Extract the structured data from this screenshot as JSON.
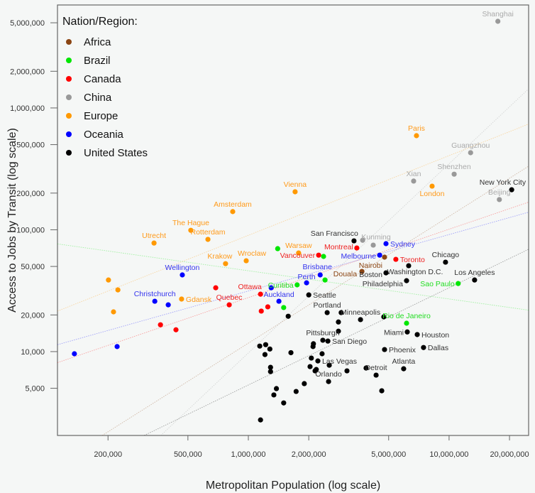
{
  "chart_data": {
    "type": "scatter",
    "xlabel": "Metropolitan Population (log scale)",
    "ylabel": "Access to Jobs by Transit (log scale)",
    "x_scale": "log",
    "y_scale": "log",
    "xlim": [
      112000,
      24900000
    ],
    "ylim": [
      2050,
      7000000
    ],
    "xticks": [
      {
        "value": 200000,
        "label": "200,000"
      },
      {
        "value": 500000,
        "label": "500,000"
      },
      {
        "value": 1000000,
        "label": "1,000,000"
      },
      {
        "value": 2000000,
        "label": "2,000,000"
      },
      {
        "value": 5000000,
        "label": "5,000,000"
      },
      {
        "value": 10000000,
        "label": "10,000,000"
      },
      {
        "value": 20000000,
        "label": "20,000,000"
      }
    ],
    "yticks": [
      {
        "value": 5000000,
        "label": "5,000,000"
      },
      {
        "value": 2000000,
        "label": "2,000,000"
      },
      {
        "value": 1000000,
        "label": "1,000,000"
      },
      {
        "value": 500000,
        "label": "500,000"
      },
      {
        "value": 200000,
        "label": "200,000"
      },
      {
        "value": 100000,
        "label": "100,000"
      },
      {
        "value": 50000,
        "label": "50,000"
      },
      {
        "value": 20000,
        "label": "20,000"
      },
      {
        "value": 10000,
        "label": "10,000"
      },
      {
        "value": 5000,
        "label": "5,000"
      }
    ],
    "grid": false,
    "trend_lines": "per-series log-log fit, dotted",
    "legend": {
      "title": "Nation/Region:",
      "placement": "top-left"
    },
    "series": [
      {
        "name": "Africa",
        "color": "#8b4513",
        "label_color": "#8b4513",
        "points": [
          {
            "x": 3680000,
            "y": 45500,
            "label": "Douala"
          },
          {
            "x": 4770000,
            "y": 59600,
            "label": "Nairobi"
          }
        ]
      },
      {
        "name": "Brazil",
        "color": "#00e600",
        "label_color": "#22dd22",
        "points": [
          {
            "x": 1400000,
            "y": 70000
          },
          {
            "x": 2370000,
            "y": 60400
          },
          {
            "x": 1750000,
            "y": 35300,
            "label": "Curitiba"
          },
          {
            "x": 2410000,
            "y": 38700
          },
          {
            "x": 1500000,
            "y": 23000
          },
          {
            "x": 11100000,
            "y": 36200,
            "label": "Sao Paulo"
          },
          {
            "x": 6140000,
            "y": 17100,
            "label": "Rio de Janeiro"
          }
        ]
      },
      {
        "name": "Canada",
        "color": "#ff0000",
        "label_color": "#ee2222",
        "points": [
          {
            "x": 2240000,
            "y": 61900,
            "label": "Vancouver"
          },
          {
            "x": 3470000,
            "y": 70900,
            "label": "Montreal"
          },
          {
            "x": 5430000,
            "y": 57200,
            "label": "Toronto"
          },
          {
            "x": 688000,
            "y": 33400
          },
          {
            "x": 1150000,
            "y": 29600,
            "label": "Ottawa"
          },
          {
            "x": 803000,
            "y": 24200,
            "label": "Quebec"
          },
          {
            "x": 1250000,
            "y": 23300
          },
          {
            "x": 1160000,
            "y": 21500
          },
          {
            "x": 365000,
            "y": 16600
          },
          {
            "x": 436000,
            "y": 15100
          }
        ]
      },
      {
        "name": "China",
        "color": "#999999",
        "label_color": "#aaaaaa",
        "points": [
          {
            "x": 17500000,
            "y": 5140000,
            "label": "Shanghai"
          },
          {
            "x": 12800000,
            "y": 429000,
            "label": "Guangzhou"
          },
          {
            "x": 10600000,
            "y": 286000,
            "label": "Shenzhen"
          },
          {
            "x": 6660000,
            "y": 251000,
            "label": "Xian"
          },
          {
            "x": 17800000,
            "y": 177000,
            "label": "Beijing"
          },
          {
            "x": 3710000,
            "y": 82000
          },
          {
            "x": 4190000,
            "y": 74800,
            "label": "Kunming"
          }
        ]
      },
      {
        "name": "Europe",
        "color": "#ff9900",
        "label_color": "#ff9a1a",
        "points": [
          {
            "x": 6880000,
            "y": 592000,
            "label": "Paris"
          },
          {
            "x": 8230000,
            "y": 228000,
            "label": "London"
          },
          {
            "x": 1710000,
            "y": 205000,
            "label": "Vienna"
          },
          {
            "x": 836000,
            "y": 141000,
            "label": "Amsterdam"
          },
          {
            "x": 517000,
            "y": 99000,
            "label": "The Hague"
          },
          {
            "x": 629000,
            "y": 83400,
            "label": "Rotterdam"
          },
          {
            "x": 339000,
            "y": 77800,
            "label": "Utrecht"
          },
          {
            "x": 1780000,
            "y": 64500,
            "label": "Warsaw"
          },
          {
            "x": 770000,
            "y": 52700,
            "label": "Krakow"
          },
          {
            "x": 976000,
            "y": 55700,
            "label": "Wroclaw"
          },
          {
            "x": 465000,
            "y": 27000,
            "label": "Gdansk"
          },
          {
            "x": 201000,
            "y": 38700
          },
          {
            "x": 224000,
            "y": 32100
          },
          {
            "x": 213000,
            "y": 21200
          }
        ]
      },
      {
        "name": "Oceania",
        "color": "#0000ff",
        "label_color": "#3333ee",
        "points": [
          {
            "x": 4850000,
            "y": 76900,
            "label": "Sydney"
          },
          {
            "x": 4510000,
            "y": 61900,
            "label": "Melbourne"
          },
          {
            "x": 2280000,
            "y": 42600,
            "label": "Brisbane"
          },
          {
            "x": 1950000,
            "y": 36700,
            "label": "Perth"
          },
          {
            "x": 1420000,
            "y": 25900,
            "label": "Auckland"
          },
          {
            "x": 1300000,
            "y": 33400
          },
          {
            "x": 469000,
            "y": 42600,
            "label": "Wellington"
          },
          {
            "x": 342000,
            "y": 25900,
            "label": "Christchurch"
          },
          {
            "x": 399000,
            "y": 24200
          },
          {
            "x": 222000,
            "y": 11000
          },
          {
            "x": 136000,
            "y": 9600
          }
        ]
      },
      {
        "name": "United States",
        "color": "#000000",
        "label_color": "#333333",
        "points": [
          {
            "x": 20500000,
            "y": 213000,
            "label": "New York City"
          },
          {
            "x": 3360000,
            "y": 81100,
            "label": "San Francisco"
          },
          {
            "x": 9600000,
            "y": 54200,
            "label": "Chicago"
          },
          {
            "x": 6290000,
            "y": 50700,
            "label": "Washington D.C."
          },
          {
            "x": 4850000,
            "y": 44300,
            "label": "Boston"
          },
          {
            "x": 6140000,
            "y": 38200,
            "label": "Philadelphia"
          },
          {
            "x": 13400000,
            "y": 38700,
            "label": "Los Angeles"
          },
          {
            "x": 2000000,
            "y": 29200,
            "label": "Seattle"
          },
          {
            "x": 1580000,
            "y": 19500
          },
          {
            "x": 2470000,
            "y": 20900,
            "label": "Portland"
          },
          {
            "x": 2900000,
            "y": 20900
          },
          {
            "x": 3620000,
            "y": 18300,
            "label": "Minneapolis"
          },
          {
            "x": 4730000,
            "y": 19300
          },
          {
            "x": 2810000,
            "y": 17500
          },
          {
            "x": 2810000,
            "y": 14700
          },
          {
            "x": 6190000,
            "y": 14500,
            "label": "Miami"
          },
          {
            "x": 6940000,
            "y": 13800,
            "label": "Houston"
          },
          {
            "x": 7460000,
            "y": 10800,
            "label": "Dallas"
          },
          {
            "x": 2350000,
            "y": 12400,
            "label": "Pittsburgh"
          },
          {
            "x": 2490000,
            "y": 12200,
            "label": "San Diego"
          },
          {
            "x": 2110000,
            "y": 11600
          },
          {
            "x": 2100000,
            "y": 11000
          },
          {
            "x": 1630000,
            "y": 9800
          },
          {
            "x": 4770000,
            "y": 10400,
            "label": "Phoenix"
          },
          {
            "x": 2330000,
            "y": 9600
          },
          {
            "x": 2060000,
            "y": 8850
          },
          {
            "x": 2220000,
            "y": 8380,
            "label": "Las Vegas"
          },
          {
            "x": 2530000,
            "y": 7730
          },
          {
            "x": 2030000,
            "y": 7530
          },
          {
            "x": 2150000,
            "y": 6950
          },
          {
            "x": 2180000,
            "y": 7130
          },
          {
            "x": 3100000,
            "y": 6950
          },
          {
            "x": 3860000,
            "y": 7330
          },
          {
            "x": 4330000,
            "y": 6410,
            "label": "Detroit"
          },
          {
            "x": 5940000,
            "y": 7230,
            "label": "Atlanta"
          },
          {
            "x": 2510000,
            "y": 5680,
            "label": "Orlando"
          },
          {
            "x": 1900000,
            "y": 5460
          },
          {
            "x": 1730000,
            "y": 4710
          },
          {
            "x": 1380000,
            "y": 4970
          },
          {
            "x": 1340000,
            "y": 4410
          },
          {
            "x": 1500000,
            "y": 3790
          },
          {
            "x": 1150000,
            "y": 2750
          },
          {
            "x": 4620000,
            "y": 4770
          },
          {
            "x": 1140000,
            "y": 11100
          },
          {
            "x": 1220000,
            "y": 11400
          },
          {
            "x": 1280000,
            "y": 10500
          },
          {
            "x": 1210000,
            "y": 9460
          },
          {
            "x": 1290000,
            "y": 7430
          },
          {
            "x": 1290000,
            "y": 6850
          }
        ]
      }
    ]
  }
}
